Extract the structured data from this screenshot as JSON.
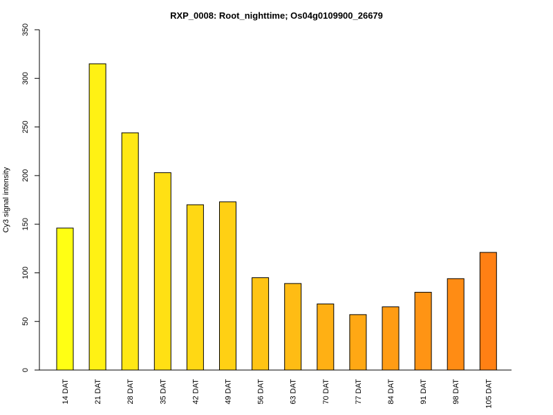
{
  "chart_data": {
    "type": "bar",
    "title": "RXP_0008: Root_nighttime; Os04g0109900_26679",
    "xlabel": "",
    "ylabel": "Cy3 signal intensity",
    "ylim": [
      0,
      350
    ],
    "yticks": [
      0,
      50,
      100,
      150,
      200,
      250,
      300,
      350
    ],
    "categories": [
      "14 DAT",
      "21 DAT",
      "28 DAT",
      "35 DAT",
      "42 DAT",
      "49 DAT",
      "56 DAT",
      "63 DAT",
      "70 DAT",
      "77 DAT",
      "84 DAT",
      "91 DAT",
      "98 DAT",
      "105 DAT"
    ],
    "values": [
      146,
      315,
      244,
      203,
      170,
      173,
      95,
      89,
      68,
      57,
      65,
      80,
      94,
      121
    ],
    "colors": [
      "#FFFF14",
      "#FFF114",
      "#FFE814",
      "#FFE014",
      "#FFD814",
      "#FFD014",
      "#FFC414",
      "#FFBC14",
      "#FFB014",
      "#FFA814",
      "#FF9C14",
      "#FF9414",
      "#FF8C14",
      "#FF8014"
    ],
    "grid": false,
    "legend": "none"
  }
}
